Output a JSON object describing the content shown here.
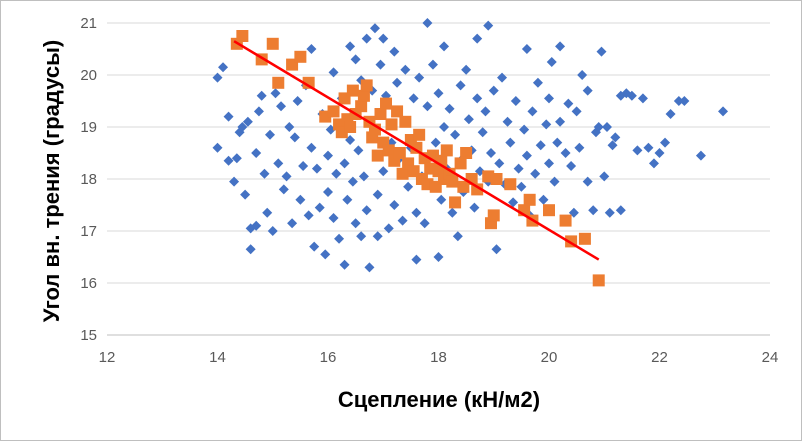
{
  "colors": {
    "series_blue": "#4472c4",
    "series_orange": "#ed7d31",
    "trendline": "#ff0000",
    "gridline": "#d9d9d9",
    "axis": "#bfbfbf",
    "tick_text": "#595959"
  },
  "chart_data": {
    "type": "scatter",
    "xlabel": "Сцепление (кН/м2)",
    "ylabel": "Угол вн. трения (градусы)",
    "xlim": [
      12,
      24
    ],
    "ylim": [
      15,
      21
    ],
    "xticks": [
      "12",
      "14",
      "16",
      "18",
      "20",
      "22",
      "24"
    ],
    "yticks": [
      "15",
      "16",
      "17",
      "18",
      "19",
      "20",
      "21"
    ],
    "grid": {
      "horizontal": true,
      "vertical": false
    },
    "legend": "none",
    "series": [
      {
        "marker": "diamond",
        "color": "#4472c4",
        "points": [
          [
            14.0,
            18.6
          ],
          [
            14.0,
            19.95
          ],
          [
            14.1,
            20.15
          ],
          [
            14.2,
            18.35
          ],
          [
            14.2,
            19.2
          ],
          [
            14.3,
            17.95
          ],
          [
            14.35,
            18.4
          ],
          [
            14.4,
            18.9
          ],
          [
            14.45,
            19.0
          ],
          [
            14.5,
            17.7
          ],
          [
            14.55,
            19.1
          ],
          [
            14.6,
            17.05
          ],
          [
            14.6,
            16.65
          ],
          [
            14.7,
            18.5
          ],
          [
            14.7,
            17.1
          ],
          [
            14.75,
            19.3
          ],
          [
            14.8,
            19.6
          ],
          [
            14.85,
            18.1
          ],
          [
            14.9,
            17.35
          ],
          [
            14.95,
            18.85
          ],
          [
            15.0,
            17.0
          ],
          [
            15.05,
            19.65
          ],
          [
            15.1,
            18.3
          ],
          [
            15.15,
            19.4
          ],
          [
            15.2,
            17.8
          ],
          [
            15.25,
            18.05
          ],
          [
            15.3,
            19.0
          ],
          [
            15.35,
            17.15
          ],
          [
            15.4,
            18.8
          ],
          [
            15.45,
            19.5
          ],
          [
            15.5,
            17.6
          ],
          [
            15.55,
            18.25
          ],
          [
            15.6,
            19.8
          ],
          [
            15.65,
            17.3
          ],
          [
            15.7,
            18.6
          ],
          [
            15.7,
            20.5
          ],
          [
            15.75,
            16.7
          ],
          [
            15.8,
            18.2
          ],
          [
            15.85,
            17.45
          ],
          [
            15.9,
            19.25
          ],
          [
            15.95,
            16.55
          ],
          [
            16.0,
            18.45
          ],
          [
            16.0,
            17.75
          ],
          [
            16.05,
            18.95
          ],
          [
            16.1,
            17.25
          ],
          [
            16.1,
            20.05
          ],
          [
            16.15,
            18.1
          ],
          [
            16.2,
            16.85
          ],
          [
            16.25,
            19.55
          ],
          [
            16.3,
            18.3
          ],
          [
            16.3,
            16.35
          ],
          [
            16.35,
            17.6
          ],
          [
            16.4,
            20.55
          ],
          [
            16.4,
            18.75
          ],
          [
            16.45,
            17.95
          ],
          [
            16.5,
            20.3
          ],
          [
            16.5,
            17.15
          ],
          [
            16.55,
            18.55
          ],
          [
            16.6,
            16.9
          ],
          [
            16.6,
            19.9
          ],
          [
            16.65,
            18.05
          ],
          [
            16.7,
            20.7
          ],
          [
            16.7,
            17.4
          ],
          [
            16.75,
            16.3
          ],
          [
            16.8,
            18.85
          ],
          [
            16.8,
            19.7
          ],
          [
            16.85,
            20.9
          ],
          [
            16.9,
            17.7
          ],
          [
            16.9,
            16.9
          ],
          [
            16.95,
            20.2
          ],
          [
            17.0,
            18.15
          ],
          [
            17.0,
            20.7
          ],
          [
            17.05,
            19.6
          ],
          [
            17.1,
            17.05
          ],
          [
            17.15,
            18.7
          ],
          [
            17.2,
            20.45
          ],
          [
            17.2,
            17.5
          ],
          [
            17.25,
            19.85
          ],
          [
            17.3,
            18.4
          ],
          [
            17.35,
            17.2
          ],
          [
            17.4,
            19.1
          ],
          [
            17.4,
            20.1
          ],
          [
            17.45,
            17.85
          ],
          [
            17.5,
            18.6
          ],
          [
            17.55,
            19.55
          ],
          [
            17.6,
            16.45
          ],
          [
            17.6,
            17.35
          ],
          [
            17.65,
            19.95
          ],
          [
            17.7,
            18.05
          ],
          [
            17.75,
            17.15
          ],
          [
            17.8,
            19.4
          ],
          [
            17.8,
            21.0
          ],
          [
            17.85,
            17.9
          ],
          [
            17.9,
            20.2
          ],
          [
            17.95,
            18.7
          ],
          [
            18.0,
            16.5
          ],
          [
            18.0,
            19.65
          ],
          [
            18.05,
            17.6
          ],
          [
            18.1,
            20.55
          ],
          [
            18.1,
            19.0
          ],
          [
            18.15,
            18.2
          ],
          [
            18.2,
            19.35
          ],
          [
            18.25,
            17.35
          ],
          [
            18.3,
            18.85
          ],
          [
            18.35,
            16.9
          ],
          [
            18.4,
            19.8
          ],
          [
            18.4,
            18.35
          ],
          [
            18.45,
            17.75
          ],
          [
            18.5,
            20.1
          ],
          [
            18.55,
            19.15
          ],
          [
            18.6,
            18.55
          ],
          [
            18.65,
            17.45
          ],
          [
            18.7,
            20.7
          ],
          [
            18.7,
            19.55
          ],
          [
            18.75,
            18.15
          ],
          [
            18.8,
            18.9
          ],
          [
            18.85,
            19.3
          ],
          [
            18.9,
            20.95
          ],
          [
            18.9,
            17.95
          ],
          [
            18.95,
            18.5
          ],
          [
            19.0,
            19.7
          ],
          [
            19.05,
            16.65
          ],
          [
            19.1,
            18.3
          ],
          [
            19.15,
            19.95
          ],
          [
            19.2,
            17.9
          ],
          [
            19.25,
            19.1
          ],
          [
            19.3,
            18.7
          ],
          [
            19.35,
            17.55
          ],
          [
            19.4,
            19.5
          ],
          [
            19.45,
            18.2
          ],
          [
            19.5,
            17.85
          ],
          [
            19.55,
            18.95
          ],
          [
            19.6,
            20.5
          ],
          [
            19.6,
            18.45
          ],
          [
            19.65,
            17.3
          ],
          [
            19.7,
            19.3
          ],
          [
            19.75,
            18.1
          ],
          [
            19.8,
            19.85
          ],
          [
            19.85,
            18.65
          ],
          [
            19.9,
            17.6
          ],
          [
            19.95,
            19.05
          ],
          [
            20.0,
            18.3
          ],
          [
            20.0,
            19.55
          ],
          [
            20.05,
            20.25
          ],
          [
            20.1,
            17.95
          ],
          [
            20.15,
            18.7
          ],
          [
            20.2,
            20.55
          ],
          [
            20.2,
            19.1
          ],
          [
            20.3,
            18.5
          ],
          [
            20.35,
            19.45
          ],
          [
            20.4,
            18.25
          ],
          [
            20.45,
            17.35
          ],
          [
            20.5,
            19.3
          ],
          [
            20.55,
            18.6
          ],
          [
            20.6,
            20.0
          ],
          [
            20.7,
            19.7
          ],
          [
            20.7,
            17.95
          ],
          [
            20.8,
            17.4
          ],
          [
            20.85,
            18.9
          ],
          [
            20.9,
            19.0
          ],
          [
            20.95,
            20.45
          ],
          [
            21.0,
            18.05
          ],
          [
            21.05,
            19.0
          ],
          [
            21.1,
            17.35
          ],
          [
            21.15,
            18.65
          ],
          [
            21.2,
            18.8
          ],
          [
            21.3,
            19.6
          ],
          [
            21.3,
            17.4
          ],
          [
            21.4,
            19.65
          ],
          [
            21.5,
            19.6
          ],
          [
            21.6,
            18.55
          ],
          [
            21.7,
            19.55
          ],
          [
            21.8,
            18.6
          ],
          [
            21.9,
            18.3
          ],
          [
            22.0,
            18.5
          ],
          [
            22.1,
            18.7
          ],
          [
            22.2,
            19.25
          ],
          [
            22.35,
            19.5
          ],
          [
            22.45,
            19.5
          ],
          [
            22.75,
            18.45
          ],
          [
            23.15,
            19.3
          ]
        ]
      },
      {
        "marker": "square",
        "color": "#ed7d31",
        "points": [
          [
            14.35,
            20.6
          ],
          [
            14.45,
            20.75
          ],
          [
            14.8,
            20.3
          ],
          [
            15.0,
            20.6
          ],
          [
            15.1,
            19.85
          ],
          [
            15.35,
            20.2
          ],
          [
            15.5,
            20.35
          ],
          [
            15.65,
            19.85
          ],
          [
            15.95,
            19.2
          ],
          [
            16.1,
            19.3
          ],
          [
            16.2,
            19.05
          ],
          [
            16.25,
            18.9
          ],
          [
            16.3,
            19.55
          ],
          [
            16.35,
            19.15
          ],
          [
            16.4,
            19.0
          ],
          [
            16.45,
            19.7
          ],
          [
            16.5,
            19.25
          ],
          [
            16.6,
            19.4
          ],
          [
            16.65,
            19.6
          ],
          [
            16.7,
            19.8
          ],
          [
            16.75,
            19.1
          ],
          [
            16.8,
            18.8
          ],
          [
            16.85,
            18.95
          ],
          [
            16.9,
            18.45
          ],
          [
            16.95,
            19.25
          ],
          [
            17.0,
            18.7
          ],
          [
            17.05,
            19.45
          ],
          [
            17.1,
            18.55
          ],
          [
            17.15,
            19.05
          ],
          [
            17.2,
            18.35
          ],
          [
            17.25,
            19.3
          ],
          [
            17.3,
            18.5
          ],
          [
            17.35,
            18.1
          ],
          [
            17.4,
            19.1
          ],
          [
            17.45,
            18.3
          ],
          [
            17.5,
            18.75
          ],
          [
            17.55,
            18.15
          ],
          [
            17.6,
            18.6
          ],
          [
            17.65,
            18.85
          ],
          [
            17.7,
            18.0
          ],
          [
            17.75,
            18.4
          ],
          [
            17.8,
            17.9
          ],
          [
            17.85,
            18.2
          ],
          [
            17.9,
            18.45
          ],
          [
            17.95,
            17.85
          ],
          [
            18.0,
            18.15
          ],
          [
            18.05,
            18.35
          ],
          [
            18.1,
            18.0
          ],
          [
            18.15,
            18.55
          ],
          [
            18.2,
            18.1
          ],
          [
            18.25,
            17.95
          ],
          [
            18.3,
            17.55
          ],
          [
            18.4,
            18.3
          ],
          [
            18.45,
            17.85
          ],
          [
            18.5,
            18.5
          ],
          [
            18.6,
            18.0
          ],
          [
            18.7,
            17.8
          ],
          [
            18.9,
            18.05
          ],
          [
            18.95,
            17.15
          ],
          [
            19.0,
            17.3
          ],
          [
            19.05,
            18.0
          ],
          [
            19.3,
            17.9
          ],
          [
            19.55,
            17.4
          ],
          [
            19.65,
            17.6
          ],
          [
            19.7,
            17.2
          ],
          [
            20.0,
            17.4
          ],
          [
            20.3,
            17.2
          ],
          [
            20.4,
            16.8
          ],
          [
            20.65,
            16.85
          ],
          [
            20.9,
            16.05
          ]
        ]
      }
    ],
    "trendline": {
      "series": 2,
      "type": "linear",
      "x": [
        14.3,
        20.9
      ],
      "y": [
        20.65,
        16.45
      ],
      "color": "#ff0000"
    }
  }
}
